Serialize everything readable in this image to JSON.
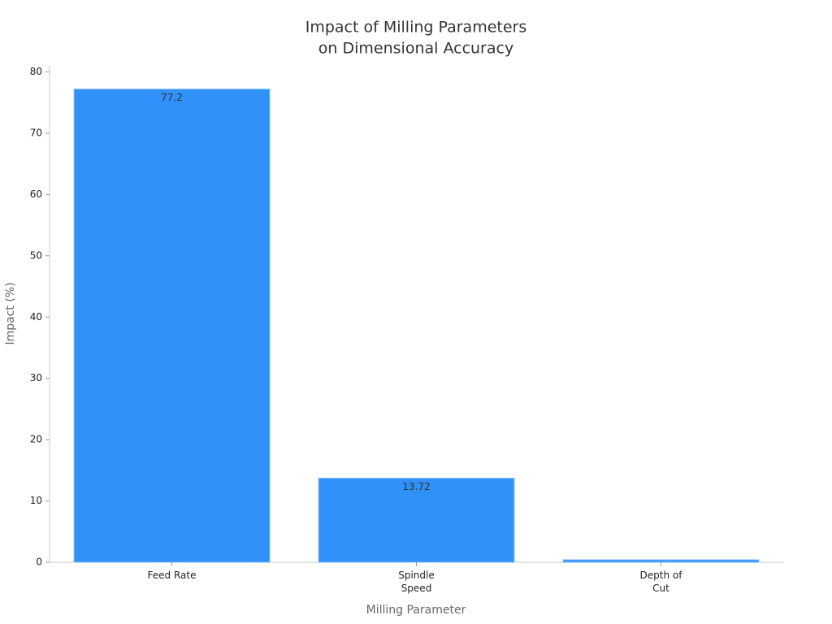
{
  "chart_data": {
    "type": "bar",
    "title": [
      "Impact of Milling Parameters",
      "on Dimensional Accuracy"
    ],
    "x_label": "Milling Parameter",
    "y_label": "Impact (%)",
    "categories": [
      "Feed Rate",
      "Spindle\nSpeed",
      "Depth of\nCut"
    ],
    "values": [
      77.2,
      13.72,
      0.4
    ],
    "value_labels": [
      "77.2",
      "13.72",
      null
    ],
    "color": "#2f91f9",
    "ylim": [
      0,
      81
    ],
    "yticks": [
      0,
      10,
      20,
      30,
      40,
      50,
      60,
      70,
      80
    ],
    "grid": false
  }
}
